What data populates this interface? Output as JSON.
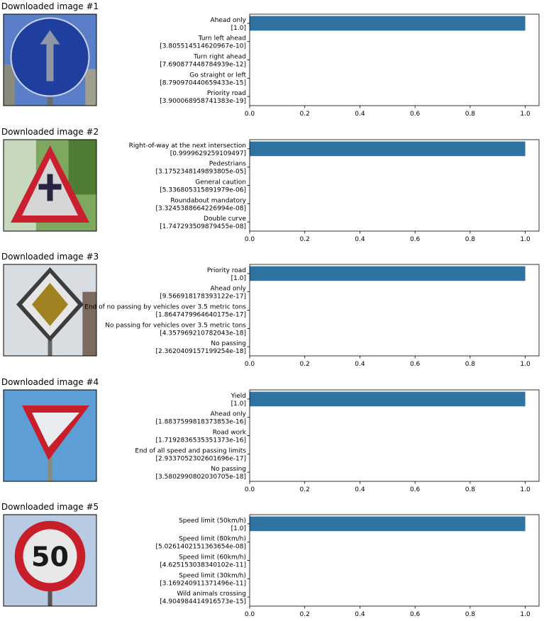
{
  "chart_data": [
    {
      "type": "bar",
      "title": "Downloaded image #1",
      "image_icon": "ahead-only-sign-icon",
      "categories": [
        "Ahead only",
        "Turn left ahead",
        "Turn right ahead",
        "Go straight or left",
        "Priority road"
      ],
      "value_labels": [
        "[1.0]",
        "[3.805514514620967e-10]",
        "[7.690877448784939e-12]",
        "[8.790970440659433e-15]",
        "[3.900068958741383e-19]"
      ],
      "values": [
        1.0,
        3.805514514620967e-10,
        7.690877448784939e-12,
        8.790970440659433e-15,
        3.900068958741383e-19
      ],
      "xticks": [
        "0.0",
        "0.2",
        "0.4",
        "0.6",
        "0.8",
        "1.0"
      ],
      "xlim": [
        0,
        1.05
      ]
    },
    {
      "type": "bar",
      "title": "Downloaded image #2",
      "image_icon": "right-of-way-sign-icon",
      "categories": [
        "Right-of-way at the next intersection",
        "Pedestrians",
        "General caution",
        "Roundabout mandatory",
        "Double curve"
      ],
      "value_labels": [
        "[0.9999629259109497]",
        "[3.1752348149893805e-05]",
        "[5.336805315891979e-06]",
        "[3.3245388664226994e-08]",
        "[1.747293509879455e-08]"
      ],
      "values": [
        0.9999629259109497,
        3.1752348149893805e-05,
        5.336805315891979e-06,
        3.3245388664226994e-08,
        1.747293509879455e-08
      ],
      "xticks": [
        "0.0",
        "0.2",
        "0.4",
        "0.6",
        "0.8",
        "1.0"
      ],
      "xlim": [
        0,
        1.05
      ]
    },
    {
      "type": "bar",
      "title": "Downloaded image #3",
      "image_icon": "priority-road-sign-icon",
      "categories": [
        "Priority road",
        "Ahead only",
        "End of no passing by vehicles over 3.5 metric tons",
        "No passing for vehicles over 3.5 metric tons",
        "No passing"
      ],
      "value_labels": [
        "[1.0]",
        "[9.566918178393122e-17]",
        "[1.8647479964640175e-17]",
        "[4.357969210782043e-18]",
        "[2.3620409157199254e-18]"
      ],
      "values": [
        1.0,
        9.566918178393122e-17,
        1.8647479964640175e-17,
        4.357969210782043e-18,
        2.3620409157199254e-18
      ],
      "xticks": [
        "0.0",
        "0.2",
        "0.4",
        "0.6",
        "0.8",
        "1.0"
      ],
      "xlim": [
        0,
        1.05
      ]
    },
    {
      "type": "bar",
      "title": "Downloaded image #4",
      "image_icon": "yield-sign-icon",
      "categories": [
        "Yield",
        "Ahead only",
        "Road work",
        "End of all speed and passing limits",
        "No passing"
      ],
      "value_labels": [
        "[1.0]",
        "[1.8837599818373853e-16]",
        "[1.7192836535351373e-16]",
        "[2.9337052302601696e-17]",
        "[3.5802990802030705e-18]"
      ],
      "values": [
        1.0,
        1.8837599818373853e-16,
        1.7192836535351373e-16,
        2.9337052302601696e-17,
        3.5802990802030705e-18
      ],
      "xticks": [
        "0.0",
        "0.2",
        "0.4",
        "0.6",
        "0.8",
        "1.0"
      ],
      "xlim": [
        0,
        1.05
      ]
    },
    {
      "type": "bar",
      "title": "Downloaded image #5",
      "image_icon": "speed-limit-50-sign-icon",
      "sign_text": "50",
      "categories": [
        "Speed limit (50km/h)",
        "Speed limit (80km/h)",
        "Speed limit (60km/h)",
        "Speed limit (30km/h)",
        "Wild animals crossing"
      ],
      "value_labels": [
        "[1.0]",
        "[5.0261402151363654e-08]",
        "[4.625153038340102e-11]",
        "[3.169240911371496e-11]",
        "[4.904984414916573e-15]"
      ],
      "values": [
        1.0,
        5.0261402151363654e-08,
        4.625153038340102e-11,
        3.169240911371496e-11,
        4.904984414916573e-15
      ],
      "xticks": [
        "0.0",
        "0.2",
        "0.4",
        "0.6",
        "0.8",
        "1.0"
      ],
      "xlim": [
        0,
        1.05
      ]
    }
  ],
  "colors": {
    "bar": "#2e73a2",
    "axis": "#000000"
  }
}
